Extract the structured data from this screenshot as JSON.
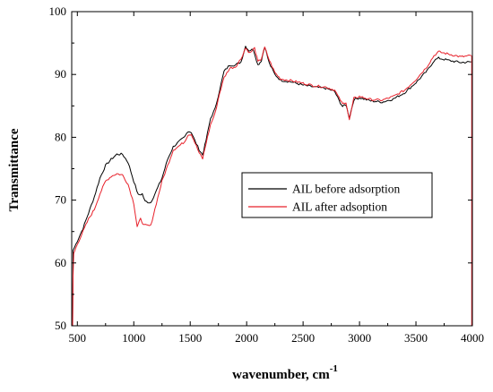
{
  "chart_data": {
    "type": "line",
    "xlabel": "wavenumber, cm",
    "xlabel_sup": "-1",
    "ylabel": "Transmittance",
    "xlim": [
      450,
      4000
    ],
    "ylim": [
      50,
      100
    ],
    "xticks": [
      500,
      1000,
      1500,
      2000,
      2500,
      3000,
      3500,
      4000
    ],
    "yticks": [
      50,
      60,
      70,
      80,
      90,
      100
    ],
    "legend_position": "center-right",
    "grid": false,
    "series": [
      {
        "name": "AIL before adsorption",
        "color": "#000000",
        "points": [
          [
            450,
            50
          ],
          [
            458,
            50
          ],
          [
            462,
            62
          ],
          [
            475,
            62.5
          ],
          [
            500,
            63.5
          ],
          [
            550,
            65.5
          ],
          [
            600,
            68
          ],
          [
            650,
            70.5
          ],
          [
            700,
            73.5
          ],
          [
            750,
            75.5
          ],
          [
            800,
            76.5
          ],
          [
            850,
            77.3
          ],
          [
            900,
            77.3
          ],
          [
            950,
            76
          ],
          [
            1000,
            73
          ],
          [
            1040,
            70.8
          ],
          [
            1075,
            71
          ],
          [
            1100,
            69.8
          ],
          [
            1150,
            69.6
          ],
          [
            1200,
            71.5
          ],
          [
            1250,
            73.5
          ],
          [
            1300,
            76.5
          ],
          [
            1350,
            78.5
          ],
          [
            1400,
            79.3
          ],
          [
            1450,
            80
          ],
          [
            1480,
            81
          ],
          [
            1510,
            80.8
          ],
          [
            1540,
            79.5
          ],
          [
            1580,
            78
          ],
          [
            1610,
            77.2
          ],
          [
            1640,
            79.5
          ],
          [
            1680,
            83
          ],
          [
            1720,
            84.5
          ],
          [
            1760,
            87.5
          ],
          [
            1800,
            90.5
          ],
          [
            1850,
            91.5
          ],
          [
            1900,
            91.5
          ],
          [
            1950,
            92
          ],
          [
            1990,
            94.5
          ],
          [
            2020,
            93.8
          ],
          [
            2060,
            94
          ],
          [
            2100,
            91.5
          ],
          [
            2130,
            92.2
          ],
          [
            2160,
            94.5
          ],
          [
            2200,
            91.8
          ],
          [
            2250,
            90
          ],
          [
            2300,
            89.1
          ],
          [
            2400,
            88.8
          ],
          [
            2500,
            88.3
          ],
          [
            2600,
            88
          ],
          [
            2700,
            87.8
          ],
          [
            2780,
            87.3
          ],
          [
            2820,
            85.8
          ],
          [
            2850,
            84.9
          ],
          [
            2880,
            85.2
          ],
          [
            2910,
            83.1
          ],
          [
            2950,
            86
          ],
          [
            3000,
            86.3
          ],
          [
            3100,
            85.8
          ],
          [
            3200,
            85.6
          ],
          [
            3300,
            86.1
          ],
          [
            3400,
            87.1
          ],
          [
            3500,
            88.7
          ],
          [
            3600,
            90.6
          ],
          [
            3660,
            92.2
          ],
          [
            3700,
            92.6
          ],
          [
            3800,
            92.2
          ],
          [
            3900,
            91.9
          ],
          [
            3990,
            92
          ]
        ]
      },
      {
        "name": "AIL after adsoption",
        "color": "#e8202a",
        "points": [
          [
            450,
            50
          ],
          [
            458,
            50
          ],
          [
            462,
            58
          ],
          [
            468,
            61.5
          ],
          [
            500,
            63
          ],
          [
            550,
            65
          ],
          [
            600,
            67
          ],
          [
            650,
            68.5
          ],
          [
            700,
            71
          ],
          [
            750,
            73
          ],
          [
            800,
            73.8
          ],
          [
            850,
            74.2
          ],
          [
            900,
            74
          ],
          [
            950,
            72.5
          ],
          [
            1000,
            69.5
          ],
          [
            1030,
            65.8
          ],
          [
            1060,
            67
          ],
          [
            1090,
            66
          ],
          [
            1150,
            65.9
          ],
          [
            1200,
            69.5
          ],
          [
            1250,
            73
          ],
          [
            1300,
            75.5
          ],
          [
            1350,
            78
          ],
          [
            1400,
            78.6
          ],
          [
            1450,
            79.3
          ],
          [
            1480,
            80.4
          ],
          [
            1510,
            80.5
          ],
          [
            1540,
            79.2
          ],
          [
            1580,
            77.5
          ],
          [
            1610,
            76.6
          ],
          [
            1640,
            79
          ],
          [
            1680,
            82
          ],
          [
            1720,
            83.8
          ],
          [
            1760,
            87
          ],
          [
            1800,
            89.5
          ],
          [
            1850,
            91
          ],
          [
            1900,
            91.2
          ],
          [
            1950,
            92.5
          ],
          [
            1990,
            94.2
          ],
          [
            2030,
            93.4
          ],
          [
            2070,
            94.2
          ],
          [
            2100,
            92
          ],
          [
            2130,
            92.5
          ],
          [
            2160,
            94.3
          ],
          [
            2200,
            92.3
          ],
          [
            2250,
            90.3
          ],
          [
            2300,
            89.3
          ],
          [
            2400,
            89
          ],
          [
            2500,
            88.6
          ],
          [
            2600,
            88.2
          ],
          [
            2700,
            88
          ],
          [
            2780,
            87.5
          ],
          [
            2820,
            86.2
          ],
          [
            2850,
            85.3
          ],
          [
            2880,
            85.6
          ],
          [
            2910,
            82.7
          ],
          [
            2950,
            86.2
          ],
          [
            3000,
            86.5
          ],
          [
            3100,
            86
          ],
          [
            3200,
            85.9
          ],
          [
            3300,
            86.5
          ],
          [
            3400,
            87.5
          ],
          [
            3500,
            89.2
          ],
          [
            3600,
            91.3
          ],
          [
            3660,
            93
          ],
          [
            3700,
            93.6
          ],
          [
            3800,
            93.2
          ],
          [
            3900,
            92.8
          ],
          [
            3990,
            93
          ]
        ]
      }
    ]
  }
}
